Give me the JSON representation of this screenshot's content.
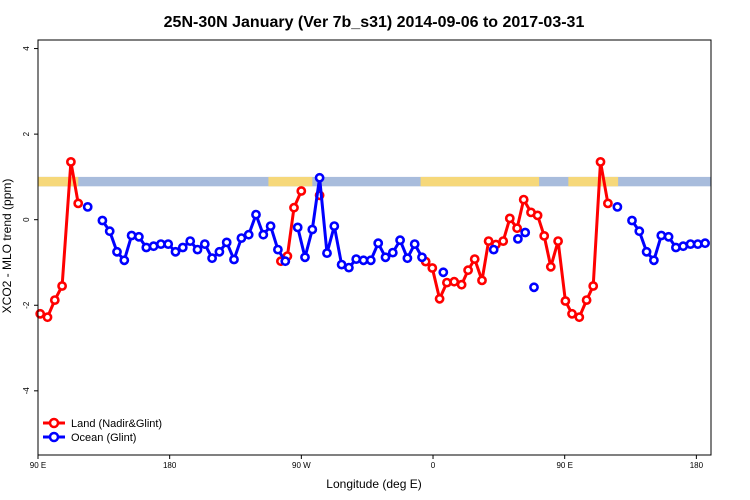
{
  "chart_data": {
    "type": "line",
    "title": "25N-30N January (Ver 7b_s31)   2014-09-06 to 2017-03-31",
    "xlabel": "Longitude (deg E)",
    "ylabel": "XCO2 - MLO trend (ppm)",
    "xlim": [
      0,
      92
    ],
    "ylim": [
      -5.5,
      4.2
    ],
    "x_ticks": [
      {
        "pos": 0,
        "label": "90 E"
      },
      {
        "pos": 18,
        "label": "180"
      },
      {
        "pos": 36,
        "label": "90 W"
      },
      {
        "pos": 54,
        "label": "0"
      },
      {
        "pos": 72,
        "label": "90 E"
      },
      {
        "pos": 90,
        "label": "180"
      }
    ],
    "y_ticks": [
      4,
      2,
      0,
      -2,
      -4
    ],
    "land_ocean_band": {
      "y_range": [
        0.78,
        1.0
      ],
      "land_color": "#f6d87a",
      "ocean_color": "#a8bcdc",
      "land_segments": [
        [
          0,
          5.5
        ],
        [
          31.5,
          37.5
        ],
        [
          52.3,
          68.5
        ],
        [
          72.5,
          79.3
        ]
      ]
    },
    "series": [
      {
        "name": "Land (Nadir&Glint)",
        "color": "#ff0000",
        "segments": [
          [
            [
              0.3,
              -2.2
            ],
            [
              1.3,
              -2.28
            ],
            [
              2.3,
              -1.88
            ],
            [
              3.3,
              -1.55
            ],
            [
              4.5,
              1.35
            ],
            [
              5.5,
              0.38
            ]
          ],
          [
            [
              33.2,
              -0.97
            ],
            [
              34.1,
              -0.85
            ],
            [
              35.0,
              0.28
            ],
            [
              36.0,
              0.67
            ]
          ],
          [
            [
              38.5,
              0.57
            ]
          ],
          [
            [
              53.0,
              -0.98
            ],
            [
              53.9,
              -1.13
            ],
            [
              54.9,
              -1.85
            ],
            [
              55.9,
              -1.47
            ],
            [
              56.9,
              -1.45
            ],
            [
              57.9,
              -1.52
            ],
            [
              58.8,
              -1.18
            ],
            [
              59.7,
              -0.92
            ],
            [
              60.7,
              -1.42
            ],
            [
              61.6,
              -0.5
            ],
            [
              62.6,
              -0.58
            ],
            [
              63.6,
              -0.5
            ],
            [
              64.5,
              0.03
            ],
            [
              65.5,
              -0.2
            ],
            [
              66.4,
              0.47
            ],
            [
              67.4,
              0.17
            ],
            [
              68.3,
              0.1
            ],
            [
              69.2,
              -0.38
            ],
            [
              70.1,
              -1.1
            ],
            [
              71.1,
              -0.5
            ],
            [
              72.1,
              -1.9
            ],
            [
              73.0,
              -2.2
            ],
            [
              74.0,
              -2.28
            ],
            [
              75.0,
              -1.88
            ],
            [
              75.9,
              -1.55
            ],
            [
              76.9,
              1.35
            ],
            [
              77.9,
              0.38
            ]
          ]
        ]
      },
      {
        "name": "Ocean (Glint)",
        "color": "#0000ff",
        "segments": [
          [
            [
              6.8,
              0.3
            ]
          ],
          [
            [
              8.8,
              -0.02
            ],
            [
              9.8,
              -0.27
            ],
            [
              10.8,
              -0.75
            ],
            [
              11.8,
              -0.95
            ],
            [
              12.8,
              -0.37
            ],
            [
              13.8,
              -0.4
            ],
            [
              14.8,
              -0.65
            ],
            [
              15.8,
              -0.62
            ],
            [
              16.8,
              -0.57
            ],
            [
              17.8,
              -0.57
            ],
            [
              18.8,
              -0.75
            ],
            [
              19.8,
              -0.65
            ],
            [
              20.8,
              -0.5
            ],
            [
              21.8,
              -0.7
            ],
            [
              22.8,
              -0.57
            ],
            [
              23.8,
              -0.9
            ],
            [
              24.8,
              -0.75
            ],
            [
              25.8,
              -0.53
            ],
            [
              26.8,
              -0.93
            ],
            [
              27.8,
              -0.43
            ],
            [
              28.8,
              -0.35
            ],
            [
              29.8,
              0.12
            ],
            [
              30.8,
              -0.35
            ],
            [
              31.8,
              -0.15
            ],
            [
              32.8,
              -0.7
            ],
            [
              33.8,
              -0.97
            ]
          ],
          [
            [
              35.5,
              -0.18
            ],
            [
              36.5,
              -0.88
            ],
            [
              37.5,
              -0.23
            ],
            [
              38.5,
              0.98
            ],
            [
              39.5,
              -0.78
            ],
            [
              40.5,
              -0.15
            ],
            [
              41.5,
              -1.05
            ],
            [
              42.5,
              -1.12
            ],
            [
              43.5,
              -0.92
            ],
            [
              44.5,
              -0.95
            ],
            [
              45.5,
              -0.95
            ],
            [
              46.5,
              -0.55
            ],
            [
              47.5,
              -0.88
            ],
            [
              48.5,
              -0.77
            ],
            [
              49.5,
              -0.48
            ],
            [
              50.5,
              -0.9
            ],
            [
              51.5,
              -0.57
            ],
            [
              52.5,
              -0.88
            ]
          ],
          [
            [
              55.4,
              -1.23
            ]
          ],
          [
            [
              62.3,
              -0.7
            ]
          ],
          [
            [
              65.6,
              -0.45
            ]
          ],
          [
            [
              66.6,
              -0.3
            ]
          ],
          [
            [
              67.8,
              -1.58
            ]
          ],
          [
            [
              79.2,
              0.3
            ]
          ],
          [
            [
              81.2,
              -0.02
            ],
            [
              82.2,
              -0.27
            ],
            [
              83.2,
              -0.75
            ],
            [
              84.2,
              -0.95
            ],
            [
              85.2,
              -0.37
            ],
            [
              86.2,
              -0.4
            ],
            [
              87.2,
              -0.65
            ],
            [
              88.2,
              -0.62
            ],
            [
              89.2,
              -0.57
            ],
            [
              90.2,
              -0.57
            ],
            [
              91.2,
              -0.55
            ]
          ]
        ]
      }
    ],
    "legend_position": "bottom-left",
    "grid": false
  }
}
